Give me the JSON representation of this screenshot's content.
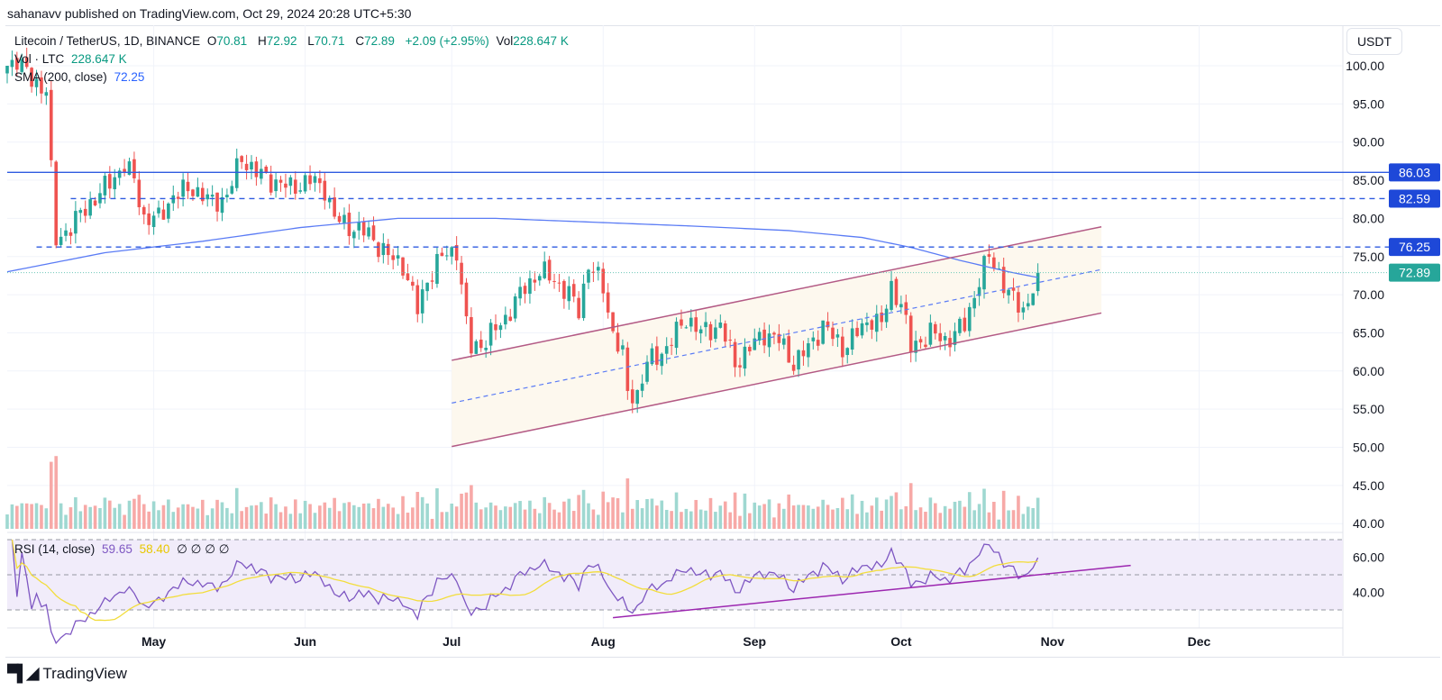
{
  "header": {
    "published": "sahanavv published on TradingView.com, Oct 29, 2024 20:28 UTC+5:30"
  },
  "legend": {
    "symbol": "Litecoin / TetherUS, 1D, BINANCE",
    "o_label": "O",
    "o": "70.81",
    "h_label": "H",
    "h": "72.92",
    "l_label": "L",
    "l": "70.71",
    "c_label": "C",
    "c": "72.89",
    "change": "+2.09 (+2.95%)",
    "vol_label": "Vol",
    "vol": "228.647 K",
    "vol_row_label": "Vol · LTC",
    "vol_row_value": "228.647 K",
    "sma_label": "SMA (200, close)",
    "sma_value": "72.25",
    "rsi_label": "RSI (14, close)",
    "rsi_value": "59.65",
    "rsi_ma_value": "58.40",
    "rsi_empty": "∅ ∅ ∅ ∅"
  },
  "price_axis": {
    "currency": "USDT"
  },
  "footer": {
    "brand": "TradingView"
  },
  "colors": {
    "up": "#26a69a",
    "down": "#ef5350",
    "up_vol": "#9fd8d1",
    "down_vol": "#f7a9a7",
    "sma": "#5b7cf5",
    "level": "#1e48d8",
    "last": "#26a69a",
    "channel": "#b35a85",
    "channel_fill": "#fdf8ee",
    "rsi": "#7e57c2",
    "rsi_ma": "#f2dd3c",
    "rsi_bg": "#f1ecfa"
  },
  "chart_data": {
    "type": "candlestick",
    "title": "Litecoin / TetherUS, 1D, BINANCE",
    "x_start": "Apr 1, 2024",
    "x_ticks": [
      {
        "label": "May",
        "day": 30
      },
      {
        "label": "Jun",
        "day": 61
      },
      {
        "label": "Jul",
        "day": 91
      },
      {
        "label": "Aug",
        "day": 122
      },
      {
        "label": "Sep",
        "day": 153
      },
      {
        "label": "Oct",
        "day": 183
      },
      {
        "label": "Nov",
        "day": 214
      },
      {
        "label": "Dec",
        "day": 244
      }
    ],
    "y_ticks": [
      "100.00",
      "95.00",
      "90.00",
      "85.00",
      "80.00",
      "75.00",
      "70.00",
      "65.00",
      "60.00",
      "55.00",
      "50.00",
      "45.00",
      "40.00"
    ],
    "ylim": [
      40,
      100
    ],
    "close_waypoints": [
      [
        0,
        100
      ],
      [
        2,
        101
      ],
      [
        5,
        98
      ],
      [
        8,
        97
      ],
      [
        9,
        86
      ],
      [
        10,
        77
      ],
      [
        13,
        79
      ],
      [
        17,
        82
      ],
      [
        20,
        84
      ],
      [
        24,
        87
      ],
      [
        26,
        85
      ],
      [
        28,
        80
      ],
      [
        31,
        80
      ],
      [
        34,
        83
      ],
      [
        38,
        84
      ],
      [
        42,
        82
      ],
      [
        45,
        83
      ],
      [
        48,
        88
      ],
      [
        51,
        86
      ],
      [
        54,
        85
      ],
      [
        58,
        84
      ],
      [
        62,
        85
      ],
      [
        65,
        84
      ],
      [
        67,
        80
      ],
      [
        70,
        79
      ],
      [
        74,
        78
      ],
      [
        78,
        75
      ],
      [
        81,
        74
      ],
      [
        84,
        68
      ],
      [
        86,
        72
      ],
      [
        89,
        75
      ],
      [
        92,
        76
      ],
      [
        94,
        66
      ],
      [
        95,
        63
      ],
      [
        98,
        64
      ],
      [
        102,
        67
      ],
      [
        106,
        71
      ],
      [
        109,
        73
      ],
      [
        112,
        72
      ],
      [
        115,
        70
      ],
      [
        117,
        68
      ],
      [
        119,
        74
      ],
      [
        122,
        71
      ],
      [
        124,
        65
      ],
      [
        126,
        62
      ],
      [
        127,
        57
      ],
      [
        129,
        57
      ],
      [
        131,
        61
      ],
      [
        135,
        63
      ],
      [
        139,
        67
      ],
      [
        142,
        65
      ],
      [
        146,
        66
      ],
      [
        149,
        61
      ],
      [
        152,
        63
      ],
      [
        155,
        65
      ],
      [
        158,
        64
      ],
      [
        161,
        61
      ],
      [
        164,
        63
      ],
      [
        167,
        66
      ],
      [
        171,
        63
      ],
      [
        174,
        65
      ],
      [
        177,
        67
      ],
      [
        179,
        66
      ],
      [
        181,
        71
      ],
      [
        183,
        69
      ],
      [
        185,
        63
      ],
      [
        187,
        64
      ],
      [
        189,
        65
      ],
      [
        192,
        64
      ],
      [
        196,
        66
      ],
      [
        199,
        72
      ],
      [
        201,
        75
      ],
      [
        203,
        73
      ],
      [
        205,
        70
      ],
      [
        208,
        68
      ],
      [
        210,
        70.8
      ],
      [
        211,
        72.89
      ]
    ],
    "sma200_waypoints": [
      [
        0,
        73
      ],
      [
        20,
        75.5
      ],
      [
        40,
        77
      ],
      [
        60,
        78.8
      ],
      [
        80,
        80
      ],
      [
        100,
        80
      ],
      [
        120,
        79.5
      ],
      [
        140,
        79
      ],
      [
        160,
        78.4
      ],
      [
        175,
        77.5
      ],
      [
        185,
        76.2
      ],
      [
        195,
        74.5
      ],
      [
        205,
        73
      ],
      [
        211,
        72.25
      ]
    ],
    "horizontal_levels": [
      {
        "price": 86.03,
        "label": "86.03",
        "style": "solid",
        "from_day": 0
      },
      {
        "price": 82.59,
        "label": "82.59",
        "style": "dashed",
        "from_day": 13
      },
      {
        "price": 76.25,
        "label": "76.25",
        "style": "dashed",
        "from_day": 6
      },
      {
        "price": 72.89,
        "label": "72.89",
        "style": "dotted",
        "from_day": 0
      }
    ],
    "channel": {
      "upper": [
        [
          91,
          61.4
        ],
        [
          224,
          78.9
        ]
      ],
      "lower": [
        [
          91,
          50.1
        ],
        [
          224,
          67.6
        ]
      ],
      "mid": [
        [
          91,
          55.8
        ],
        [
          224,
          73.3
        ]
      ]
    },
    "rsi": {
      "levels": [
        70,
        50,
        30
      ],
      "ticks": [
        "60.00",
        "40.00"
      ],
      "trendline": [
        [
          124,
          25.6
        ],
        [
          230,
          55.3
        ]
      ]
    }
  }
}
